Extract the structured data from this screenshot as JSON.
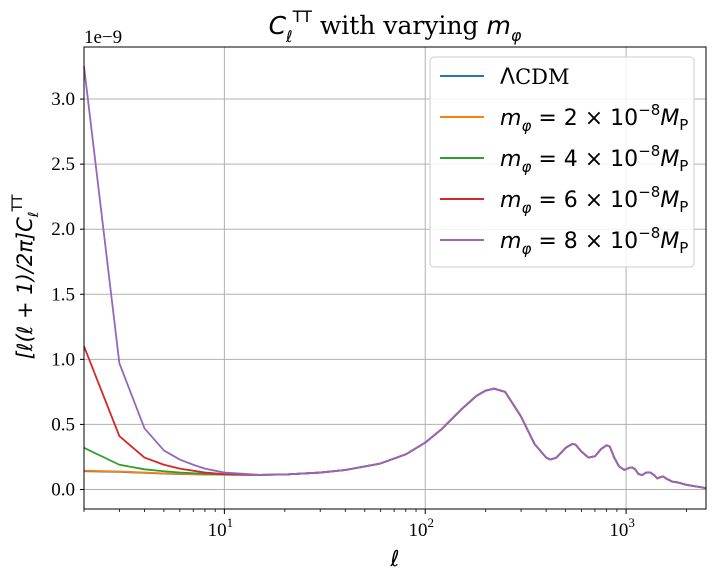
{
  "chart_data": {
    "type": "line",
    "title": {
      "sym": "C",
      "sub": "ℓ",
      "sup": "TT",
      "middle": " with varying ",
      "msym": "m",
      "msub": "φ"
    },
    "xlabel": "ℓ",
    "ylabel": "[ℓ(ℓ + 1)/2π]C",
    "ylabel_sub": "ℓ",
    "ylabel_sup": "TT",
    "x_scale": "log",
    "xlim": [
      2,
      2500
    ],
    "ylim": [
      -0.15,
      3.4
    ],
    "y_offset_text": "1e−9",
    "y_ticks": [
      "0.0",
      "0.5",
      "1.0",
      "1.5",
      "2.0",
      "2.5",
      "3.0"
    ],
    "y_tick_values": [
      0.0,
      0.5,
      1.0,
      1.5,
      2.0,
      2.5,
      3.0
    ],
    "x_ticks": [
      {
        "value": 10,
        "base": "10",
        "exp": "1"
      },
      {
        "value": 100,
        "base": "10",
        "exp": "2"
      },
      {
        "value": 1000,
        "base": "10",
        "exp": "3"
      }
    ],
    "grid": true,
    "legend_position": "top-right",
    "base_curve": {
      "x": [
        2,
        3,
        4,
        5,
        6,
        8,
        10,
        15,
        20,
        30,
        40,
        60,
        80,
        100,
        120,
        150,
        180,
        200,
        220,
        250,
        300,
        350,
        400,
        420,
        450,
        500,
        540,
        560,
        600,
        650,
        700,
        750,
        800,
        830,
        870,
        920,
        980,
        1030,
        1070,
        1110,
        1150,
        1200,
        1260,
        1320,
        1380,
        1430,
        1480,
        1530,
        1600,
        1700,
        1800,
        1900,
        2000,
        2100,
        2200,
        2300,
        2400,
        2500
      ],
      "values": [
        0.14,
        0.135,
        0.128,
        0.122,
        0.118,
        0.115,
        0.113,
        0.112,
        0.115,
        0.13,
        0.15,
        0.2,
        0.27,
        0.36,
        0.46,
        0.61,
        0.72,
        0.76,
        0.775,
        0.75,
        0.56,
        0.35,
        0.245,
        0.23,
        0.245,
        0.32,
        0.35,
        0.345,
        0.29,
        0.245,
        0.255,
        0.31,
        0.34,
        0.33,
        0.25,
        0.18,
        0.15,
        0.165,
        0.17,
        0.155,
        0.12,
        0.11,
        0.13,
        0.13,
        0.11,
        0.085,
        0.095,
        0.1,
        0.08,
        0.06,
        0.055,
        0.045,
        0.035,
        0.03,
        0.025,
        0.02,
        0.015,
        0.01
      ]
    },
    "series": [
      {
        "name": "ΛCDM",
        "label": {
          "lambda": "Λ",
          "text": "CDM"
        },
        "color": "#1f77b4",
        "low_x": [
          2,
          3,
          4,
          5,
          6,
          8,
          10
        ],
        "low_values": [
          0.14,
          0.135,
          0.128,
          0.122,
          0.118,
          0.115,
          0.113
        ]
      },
      {
        "name": "m_φ = 2 × 10^-8 M_P",
        "label": {
          "m": "m",
          "msub": "φ",
          "mid": " = 2 × 10",
          "exp": "−8",
          "M": "M",
          "Msub": "P"
        },
        "color": "#ff7f0e",
        "low_x": [
          2,
          3,
          4,
          5,
          6,
          8,
          10
        ],
        "low_values": [
          0.145,
          0.138,
          0.13,
          0.124,
          0.12,
          0.116,
          0.114
        ]
      },
      {
        "name": "m_φ = 4 × 10^-8 M_P",
        "label": {
          "m": "m",
          "msub": "φ",
          "mid": " = 4 × 10",
          "exp": "−8",
          "M": "M",
          "Msub": "P"
        },
        "color": "#2ca02c",
        "low_x": [
          2,
          3,
          4,
          5,
          6,
          8,
          10
        ],
        "low_values": [
          0.32,
          0.19,
          0.155,
          0.14,
          0.13,
          0.12,
          0.116
        ]
      },
      {
        "name": "m_φ = 6 × 10^-8 M_P",
        "label": {
          "m": "m",
          "msub": "φ",
          "mid": " = 6 × 10",
          "exp": "−8",
          "M": "M",
          "Msub": "P"
        },
        "color": "#d62728",
        "low_x": [
          2,
          3,
          4,
          5,
          6,
          8,
          10
        ],
        "low_values": [
          1.1,
          0.41,
          0.245,
          0.19,
          0.16,
          0.13,
          0.118
        ]
      },
      {
        "name": "m_φ = 8 × 10^-8 M_P",
        "label": {
          "m": "m",
          "msub": "φ",
          "mid": " = 8 × 10",
          "exp": "−8",
          "M": "M",
          "Msub": "P"
        },
        "color": "#9467bd",
        "low_x": [
          2,
          3,
          4,
          5,
          6,
          7,
          8,
          10
        ],
        "low_values": [
          3.25,
          0.97,
          0.47,
          0.3,
          0.23,
          0.19,
          0.16,
          0.13
        ]
      }
    ]
  }
}
